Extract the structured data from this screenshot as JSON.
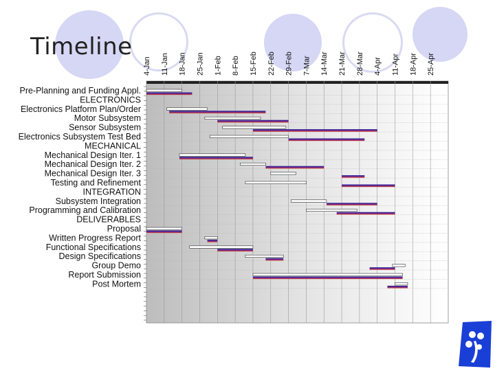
{
  "slide": {
    "title": "Timeline"
  },
  "logo": {
    "icon": "hand-logo-icon",
    "color": "#1a3fd6"
  },
  "chart_data": {
    "type": "gantt",
    "title": "",
    "date_labels": [
      "4-Jan",
      "11-Jan",
      "18-Jan",
      "25-Jan",
      "1-Feb",
      "8-Feb",
      "15-Feb",
      "22-Feb",
      "29-Feb",
      "7-Mar",
      "14-Mar",
      "21-Mar",
      "28-Mar",
      "4-Apr",
      "11-Apr",
      "18-Apr",
      "25-Apr"
    ],
    "start_date": "4-Jan",
    "end_date": "2-May",
    "colors": {
      "planned": "#ffffff",
      "actual_top": "#1a1a8c",
      "actual_bottom": "#e03a1a",
      "background_left": "#c4c4c4",
      "background_right": "#ffffff"
    },
    "tasks": [
      {
        "label": "Pre-Planning and Funding Appl.",
        "planned": [
          "4-Jan",
          "18-Jan"
        ],
        "actual": [
          "4-Jan",
          "22-Jan"
        ]
      },
      {
        "label": "ELECTRONICS",
        "header": true
      },
      {
        "label": "Electronics Platform Plan/Order",
        "planned": [
          "12-Jan",
          "28-Jan"
        ],
        "actual": [
          "13-Jan",
          "20-Feb"
        ]
      },
      {
        "label": "Motor Subsystem",
        "planned": [
          "27-Jan",
          "18-Feb"
        ],
        "actual": [
          "1-Feb",
          "29-Feb"
        ]
      },
      {
        "label": "Sensor Subsystem",
        "planned": [
          "3-Feb",
          "28-Feb"
        ],
        "actual": [
          "15-Feb",
          "4-Apr"
        ]
      },
      {
        "label": "Electronics Subsystem Test Bed",
        "planned": [
          "29-Jan",
          "29-Feb"
        ],
        "actual": [
          "29-Feb",
          "30-Mar"
        ]
      },
      {
        "label": "MECHANICAL",
        "header": true
      },
      {
        "label": "Mechanical Design Iter. 1",
        "planned": [
          "17-Jan",
          "12-Feb"
        ],
        "actual": [
          "17-Jan",
          "15-Feb"
        ]
      },
      {
        "label": "Mechanical Design Iter. 2",
        "planned": [
          "10-Feb",
          "20-Feb"
        ],
        "actual": [
          "20-Feb",
          "14-Mar"
        ]
      },
      {
        "label": "Mechanical Design Iter. 3",
        "planned": [
          "22-Feb",
          "3-Mar"
        ],
        "actual": [
          "21-Mar",
          "30-Mar"
        ]
      },
      {
        "label": "Testing and Refinement",
        "planned": [
          "12-Feb",
          "7-Mar"
        ],
        "actual": [
          "21-Mar",
          "11-Apr"
        ]
      },
      {
        "label": "INTEGRATION",
        "header": true
      },
      {
        "label": "Subsystem Integration",
        "planned": [
          "1-Mar",
          "15-Mar"
        ],
        "actual": [
          "15-Mar",
          "4-Apr"
        ]
      },
      {
        "label": "Programming and Calibration",
        "planned": [
          "7-Mar",
          "27-Mar"
        ],
        "actual": [
          "19-Mar",
          "11-Apr"
        ]
      },
      {
        "label": "DELIVERABLES",
        "header": true
      },
      {
        "label": "Proposal",
        "planned": [
          "4-Jan",
          "18-Jan"
        ],
        "actual": [
          "4-Jan",
          "18-Jan"
        ]
      },
      {
        "label": "Written Progress Report",
        "planned": [
          "27-Jan",
          "1-Feb"
        ],
        "actual": [
          "28-Jan",
          "1-Feb"
        ]
      },
      {
        "label": "Functional Specifications",
        "planned": [
          "21-Jan",
          "15-Feb"
        ],
        "actual": [
          "1-Feb",
          "15-Feb"
        ]
      },
      {
        "label": "Design Specifications",
        "planned": [
          "12-Feb",
          "27-Feb"
        ],
        "actual": [
          "20-Feb",
          "27-Feb"
        ]
      },
      {
        "label": "Group Demo",
        "planned": [
          "10-Apr",
          "15-Apr"
        ],
        "actual": [
          "1-Apr",
          "11-Apr"
        ]
      },
      {
        "label": "Report Submission",
        "planned": [
          "15-Feb",
          "14-Apr"
        ],
        "actual": [
          "15-Feb",
          "14-Apr"
        ]
      },
      {
        "label": "Post Mortem",
        "planned": [
          "11-Apr",
          "16-Apr"
        ],
        "actual": [
          "8-Apr",
          "16-Apr"
        ]
      }
    ]
  }
}
